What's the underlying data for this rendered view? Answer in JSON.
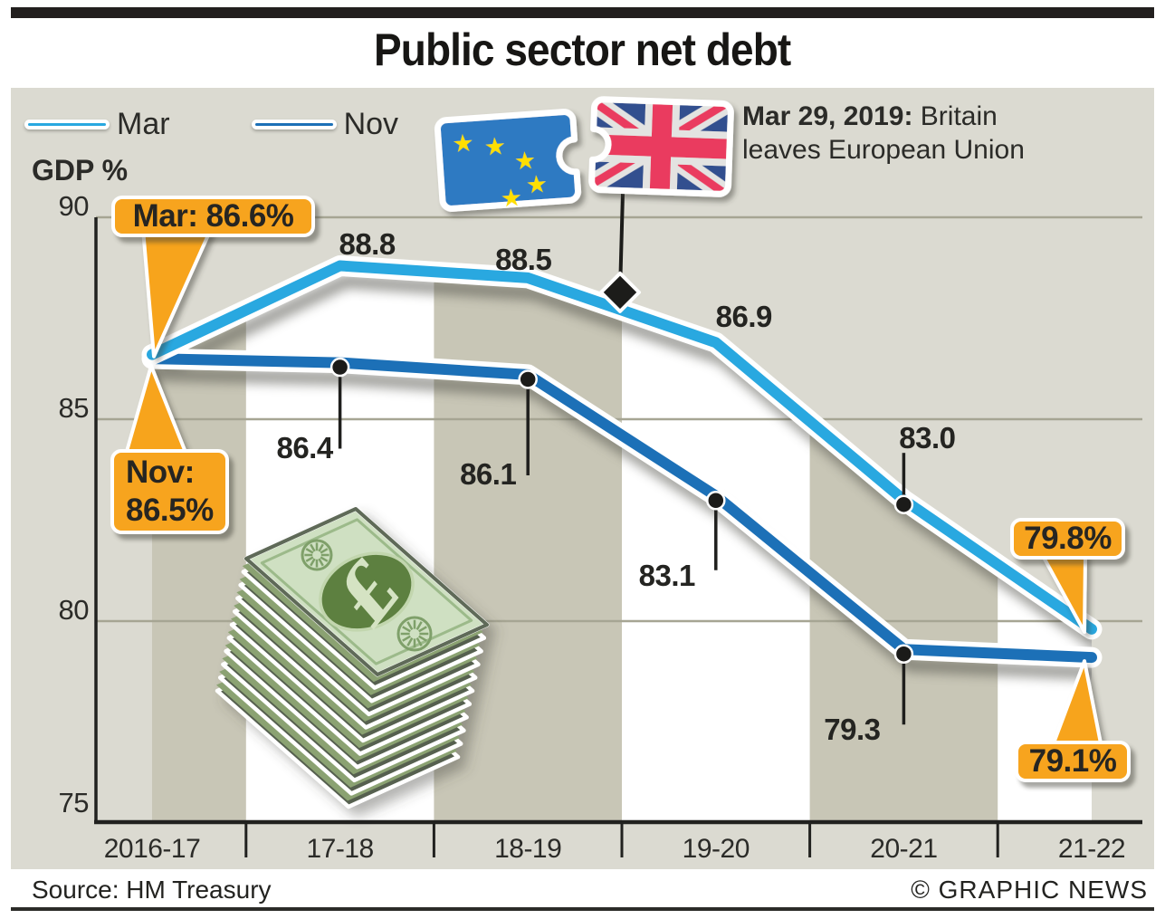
{
  "title": "Public sector net debt",
  "legend": {
    "mar_label": "Mar",
    "nov_label": "Nov"
  },
  "gdp_label": "GDP %",
  "event": {
    "date": "Mar 29, 2019:",
    "line1_rest": " Britain",
    "line2": "leaves European Union"
  },
  "callouts": {
    "mar_start": "Mar: 86.6%",
    "nov_start_line1": "Nov:",
    "nov_start_line2": "86.5%",
    "mar_end": "79.8%",
    "nov_end": "79.1%"
  },
  "footer": {
    "source": "Source: HM Treasury",
    "credit": "© GRAPHIC NEWS"
  },
  "colors": {
    "ink": "#221f1e",
    "panel_bg": "#dbdad1",
    "band_dark": "#c8c6b6",
    "band_light": "#ffffff",
    "gridline": "#a6a593",
    "mar_line": "#29a8e0",
    "nov_line": "#1c70b7",
    "callout_orange": "#f7a41e",
    "eu_blue": "#2d7ac2",
    "eu_star_yellow": "#ffdf00",
    "uk_red": "#ea3a5e",
    "uk_navy": "#33508f",
    "note_green": "#cfe0c2"
  },
  "icons": {
    "eu_flag": "eu-flag-puzzle-piece-icon",
    "uk_flag": "uk-flag-puzzle-piece-icon",
    "money": "pound-notes-stack-icon",
    "marker": "brexit-diamond-marker"
  },
  "chart_data": {
    "type": "line",
    "title": "Public sector net debt",
    "ylabel": "GDP %",
    "categories": [
      "2016-17",
      "17-18",
      "18-19",
      "19-20",
      "20-21",
      "21-22"
    ],
    "series": [
      {
        "name": "Mar",
        "color": "#29a8e0",
        "values": [
          86.6,
          88.8,
          88.5,
          86.9,
          83.0,
          79.8
        ]
      },
      {
        "name": "Nov",
        "color": "#1c70b7",
        "values": [
          86.5,
          86.4,
          86.1,
          83.1,
          79.3,
          79.1
        ]
      }
    ],
    "yticks": [
      90,
      85,
      80,
      75
    ],
    "ylim": [
      75,
      90
    ],
    "grid": "horizontal",
    "legend_position": "top-left",
    "annotation": {
      "label": "Mar 29, 2019: Britain leaves European Union",
      "marker": "diamond",
      "between_categories": [
        "18-19",
        "19-20"
      ],
      "on_series": "Mar"
    }
  }
}
